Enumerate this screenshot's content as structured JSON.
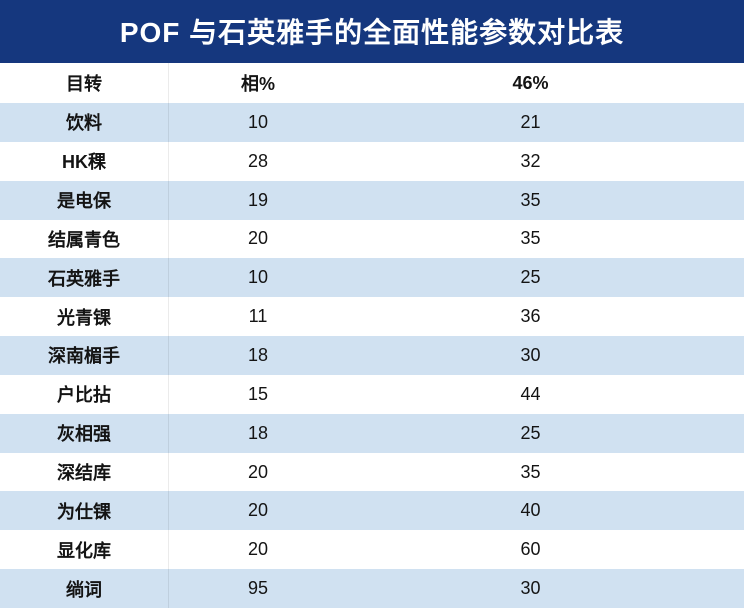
{
  "title": "POF 与石英雅手的全面性能参数对比表",
  "colors": {
    "title_bg": "#15377E",
    "title_text": "#FFFFFF",
    "stripe": "#D0E1F1",
    "row_alt": "#FFFFFF",
    "text": "#141414"
  },
  "chart_data": {
    "type": "table",
    "title": "POF 与石英雅手的全面性能参数对比表",
    "columns": [
      "目转",
      "相%",
      "46%"
    ],
    "rows": [
      [
        "饮料",
        "10",
        "21"
      ],
      [
        "HK稞",
        "28",
        "32"
      ],
      [
        "是电保",
        "19",
        "35"
      ],
      [
        "结属青色",
        "20",
        "35"
      ],
      [
        "石英雅手",
        "10",
        "25"
      ],
      [
        "光青锞",
        "11",
        "36"
      ],
      [
        "深南楣手",
        "18",
        "30"
      ],
      [
        "户比拈",
        "15",
        "44"
      ],
      [
        "灰相强",
        "18",
        "25"
      ],
      [
        "深结库",
        "20",
        "35"
      ],
      [
        "为仕锞",
        "20",
        "40"
      ],
      [
        "显化库",
        "20",
        "60"
      ],
      [
        "绱词",
        "95",
        "30"
      ]
    ],
    "layout": {
      "striped": true,
      "stripe_start_row": 1,
      "header_band_color": "#15377E"
    }
  }
}
